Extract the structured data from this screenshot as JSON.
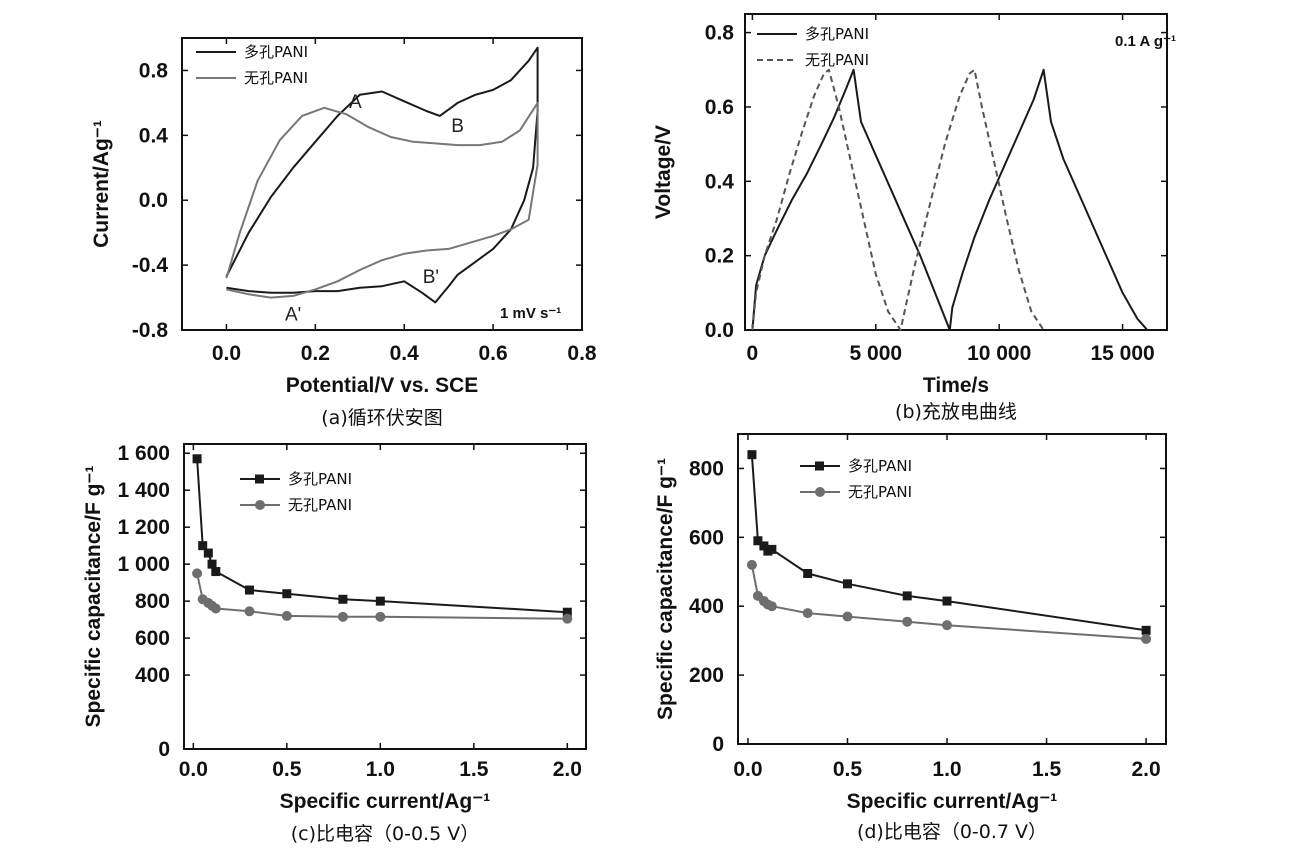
{
  "chart_data": [
    {
      "id": "a",
      "type": "line",
      "caption": "(a)循环伏安图",
      "xlabel": "Potential/V vs. SCE",
      "ylabel": "Current/Ag⁻¹",
      "xlim": [
        -0.1,
        0.8
      ],
      "ylim": [
        -0.8,
        1.0
      ],
      "xticks": [
        0.0,
        0.2,
        0.4,
        0.6,
        0.8
      ],
      "xtick_labels": [
        "0.0",
        "0.2",
        "0.4",
        "0.6",
        "0.8"
      ],
      "yticks": [
        -0.8,
        -0.4,
        0.0,
        0.4,
        0.8
      ],
      "ytick_labels": [
        "-0.8",
        "-0.4",
        "0.0",
        "0.4",
        "0.8"
      ],
      "legend_position": "top-left",
      "annotation": "1 mV s⁻¹",
      "peak_labels": [
        {
          "text": "A",
          "x": 0.29,
          "y": 0.57
        },
        {
          "text": "B",
          "x": 0.52,
          "y": 0.42
        },
        {
          "text": "B'",
          "x": 0.46,
          "y": -0.51
        },
        {
          "text": "A'",
          "x": 0.15,
          "y": -0.74
        }
      ],
      "series": [
        {
          "name": "多孔PANI",
          "style": "solid",
          "color": "#1a1a1a",
          "x": [
            0.0,
            0.05,
            0.1,
            0.15,
            0.2,
            0.25,
            0.3,
            0.35,
            0.4,
            0.45,
            0.48,
            0.52,
            0.56,
            0.6,
            0.64,
            0.68,
            0.7,
            0.7,
            0.69,
            0.67,
            0.64,
            0.6,
            0.56,
            0.52,
            0.5,
            0.47,
            0.44,
            0.4,
            0.35,
            0.3,
            0.25,
            0.2,
            0.15,
            0.1,
            0.05,
            0.0
          ],
          "y": [
            -0.47,
            -0.2,
            0.02,
            0.2,
            0.36,
            0.52,
            0.65,
            0.67,
            0.61,
            0.55,
            0.52,
            0.6,
            0.65,
            0.68,
            0.74,
            0.86,
            0.94,
            0.55,
            0.2,
            0.0,
            -0.18,
            -0.3,
            -0.38,
            -0.46,
            -0.53,
            -0.63,
            -0.57,
            -0.5,
            -0.53,
            -0.54,
            -0.56,
            -0.56,
            -0.57,
            -0.57,
            -0.56,
            -0.54
          ]
        },
        {
          "name": "无孔PANI",
          "style": "solid",
          "color": "#777777",
          "x": [
            0.0,
            0.03,
            0.07,
            0.12,
            0.17,
            0.22,
            0.27,
            0.32,
            0.37,
            0.42,
            0.47,
            0.52,
            0.57,
            0.62,
            0.66,
            0.7,
            0.7,
            0.68,
            0.64,
            0.6,
            0.55,
            0.5,
            0.45,
            0.4,
            0.35,
            0.3,
            0.25,
            0.2,
            0.15,
            0.1,
            0.05,
            0.0
          ],
          "y": [
            -0.48,
            -0.2,
            0.12,
            0.37,
            0.52,
            0.57,
            0.53,
            0.45,
            0.39,
            0.36,
            0.35,
            0.34,
            0.34,
            0.36,
            0.43,
            0.6,
            0.22,
            -0.12,
            -0.18,
            -0.22,
            -0.26,
            -0.3,
            -0.31,
            -0.33,
            -0.37,
            -0.43,
            -0.5,
            -0.55,
            -0.59,
            -0.6,
            -0.58,
            -0.55
          ]
        }
      ]
    },
    {
      "id": "b",
      "type": "line",
      "caption": "(b)充放电曲线",
      "xlabel": "Time/s",
      "ylabel": "Voltage/V",
      "xlim": [
        -300,
        16800
      ],
      "ylim": [
        0.0,
        0.85
      ],
      "xticks": [
        0,
        5000,
        10000,
        15000
      ],
      "xtick_labels": [
        "0",
        "5 000",
        "10 000",
        "15 000"
      ],
      "yticks": [
        0.0,
        0.2,
        0.4,
        0.6,
        0.8
      ],
      "ytick_labels": [
        "0.0",
        "0.2",
        "0.4",
        "0.6",
        "0.8"
      ],
      "legend_position": "top-left",
      "annotation": "0.1 A g⁻¹",
      "series": [
        {
          "name": "多孔PANI",
          "style": "solid",
          "color": "#1a1a1a",
          "x": [
            0,
            150,
            500,
            1000,
            1600,
            2200,
            2800,
            3300,
            3800,
            4100,
            4400,
            5000,
            5600,
            6200,
            6800,
            7400,
            8000,
            8100,
            8500,
            9000,
            9600,
            10200,
            10800,
            11400,
            11800,
            12100,
            12600,
            13200,
            13800,
            14400,
            15000,
            15600,
            16000
          ],
          "y": [
            0.0,
            0.12,
            0.2,
            0.27,
            0.35,
            0.42,
            0.5,
            0.57,
            0.65,
            0.7,
            0.56,
            0.47,
            0.38,
            0.29,
            0.2,
            0.1,
            0.0,
            0.06,
            0.15,
            0.25,
            0.35,
            0.44,
            0.53,
            0.62,
            0.7,
            0.56,
            0.46,
            0.37,
            0.28,
            0.19,
            0.1,
            0.03,
            0.0
          ],
          "dash": false
        },
        {
          "name": "无孔PANI",
          "style": "dashed",
          "color": "#555555",
          "x": [
            0,
            150,
            500,
            1000,
            1500,
            2000,
            2500,
            2900,
            3100,
            3500,
            4000,
            4500,
            5000,
            5500,
            6000,
            6200,
            6600,
            7200,
            7800,
            8400,
            8800,
            9000,
            9300,
            9800,
            10300,
            10800,
            11300,
            11800
          ],
          "y": [
            0.0,
            0.1,
            0.2,
            0.3,
            0.42,
            0.53,
            0.63,
            0.69,
            0.7,
            0.6,
            0.45,
            0.3,
            0.15,
            0.05,
            0.0,
            0.06,
            0.18,
            0.34,
            0.5,
            0.63,
            0.69,
            0.7,
            0.6,
            0.45,
            0.3,
            0.16,
            0.05,
            0.0
          ],
          "dash": true
        }
      ]
    },
    {
      "id": "c",
      "type": "line",
      "caption": "(c)比电容（0-0.5 V）",
      "xlabel": "Specific current/Ag⁻¹",
      "ylabel": "Specific capacitance/F g⁻¹",
      "xlim": [
        -0.05,
        2.1
      ],
      "ylim": [
        0,
        1650
      ],
      "xticks": [
        0.0,
        0.5,
        1.0,
        1.5,
        2.0
      ],
      "xtick_labels": [
        "0.0",
        "0.5",
        "1.0",
        "1.5",
        "2.0"
      ],
      "yticks": [
        0,
        400,
        600,
        800,
        1000,
        1200,
        1400,
        1600
      ],
      "ytick_labels": [
        "0",
        "400",
        "600",
        "800",
        "1 000",
        "1 200",
        "1 400",
        "1 600"
      ],
      "legend_position": "top-left",
      "series": [
        {
          "name": "多孔PANI",
          "marker": "square",
          "color": "#1a1a1a",
          "x": [
            0.02,
            0.05,
            0.08,
            0.1,
            0.12,
            0.3,
            0.5,
            0.8,
            1.0,
            2.0
          ],
          "y": [
            1570,
            1100,
            1060,
            1000,
            960,
            860,
            840,
            810,
            800,
            740
          ]
        },
        {
          "name": "无孔PANI",
          "marker": "circle",
          "color": "#6e6e6e",
          "x": [
            0.02,
            0.05,
            0.08,
            0.1,
            0.12,
            0.3,
            0.5,
            0.8,
            1.0,
            2.0
          ],
          "y": [
            950,
            810,
            790,
            775,
            760,
            745,
            720,
            715,
            715,
            705
          ]
        }
      ]
    },
    {
      "id": "d",
      "type": "line",
      "caption": "(d)比电容（0-0.7 V）",
      "xlabel": "Specific current/Ag⁻¹",
      "ylabel": "Specific capacitance/F g⁻¹",
      "xlim": [
        -0.05,
        2.1
      ],
      "ylim": [
        0,
        900
      ],
      "xticks": [
        0.0,
        0.5,
        1.0,
        1.5,
        2.0
      ],
      "xtick_labels": [
        "0.0",
        "0.5",
        "1.0",
        "1.5",
        "2.0"
      ],
      "yticks": [
        0,
        200,
        400,
        600,
        800
      ],
      "ytick_labels": [
        "0",
        "200",
        "400",
        "600",
        "800"
      ],
      "legend_position": "top-left",
      "series": [
        {
          "name": "多孔PANI",
          "marker": "square",
          "color": "#1a1a1a",
          "x": [
            0.02,
            0.05,
            0.08,
            0.1,
            0.12,
            0.3,
            0.5,
            0.8,
            1.0,
            2.0
          ],
          "y": [
            840,
            590,
            575,
            560,
            565,
            495,
            465,
            430,
            415,
            330
          ]
        },
        {
          "name": "无孔PANI",
          "marker": "circle",
          "color": "#6e6e6e",
          "x": [
            0.02,
            0.05,
            0.08,
            0.1,
            0.12,
            0.3,
            0.5,
            0.8,
            1.0,
            2.0
          ],
          "y": [
            520,
            430,
            415,
            405,
            400,
            380,
            370,
            355,
            345,
            305
          ]
        }
      ]
    }
  ]
}
